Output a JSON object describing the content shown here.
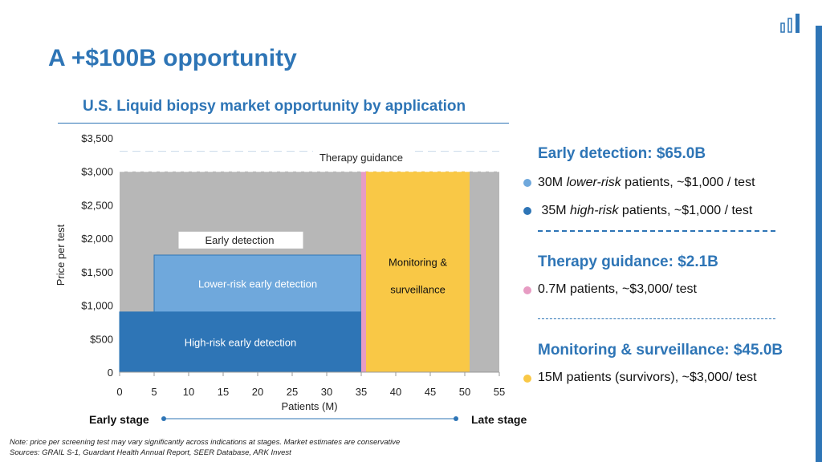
{
  "slide": {
    "title": "A +$100B opportunity"
  },
  "chart_data": {
    "type": "area",
    "title": "U.S. Liquid biopsy market opportunity by application",
    "xlabel": "Patients (M)",
    "ylabel": "Price per test",
    "xlim": [
      0,
      55
    ],
    "ylim": [
      0,
      3500
    ],
    "x_ticks": [
      0,
      5,
      10,
      15,
      20,
      25,
      30,
      35,
      40,
      45,
      50,
      55
    ],
    "y_ticks": [
      {
        "value": 0,
        "label": "0"
      },
      {
        "value": 500,
        "label": "$500"
      },
      {
        "value": 1000,
        "label": "$1,000"
      },
      {
        "value": 1500,
        "label": "$1,500"
      },
      {
        "value": 2000,
        "label": "$2,000"
      },
      {
        "value": 2500,
        "label": "$2,500"
      },
      {
        "value": 3000,
        "label": "$3,000"
      },
      {
        "value": 3500,
        "label": "$3,500"
      }
    ],
    "series": [
      {
        "name": "High-risk early detection",
        "x0": 0,
        "x1": 35,
        "y0": 0,
        "y1": 900,
        "color": "#2e75b6",
        "text_color": "#ffffff"
      },
      {
        "name": "Lower-risk early detection",
        "x0": 5,
        "x1": 35,
        "y0": 900,
        "y1": 1750,
        "color": "#6fa8dc",
        "text_color": "#ffffff"
      },
      {
        "name": "Therapy guidance",
        "x0": 35,
        "x1": 35.7,
        "y0": 0,
        "y1": 3000,
        "color": "#e79cc3"
      },
      {
        "name": "Monitoring & surveillance",
        "label_lines": [
          "Monitoring &",
          "surveillance"
        ],
        "x0": 35.7,
        "x1": 50.7,
        "y0": 0,
        "y1": 3000,
        "color": "#f9c846",
        "text_color": "#111111"
      }
    ],
    "annotations": [
      {
        "text": "Early detection",
        "x": 17.5,
        "y": 1980
      },
      {
        "text": "Therapy guidance",
        "x": 35,
        "y": 3200
      }
    ],
    "background_color": "#b7b7b7",
    "stage_axis": {
      "left": "Early stage",
      "right": "Late stage"
    }
  },
  "legend": {
    "early": {
      "heading": "Early detection: $65.0B",
      "items": [
        {
          "color": "#6fa8dc",
          "count": "30M ",
          "em": "lower-risk",
          "rest": " patients, ~$1,000 / test"
        },
        {
          "color": "#2e75b6",
          "count": " 35M ",
          "em": "high-risk",
          "rest": " patients, ~$1,000 / test"
        }
      ]
    },
    "therapy": {
      "heading": "Therapy guidance: $2.1B",
      "item": {
        "color": "#e79cc3",
        "text": "0.7M patients, ~$3,000/ test"
      }
    },
    "monitoring": {
      "heading": "Monitoring & surveillance: $45.0B",
      "item": {
        "color": "#f9c846",
        "text": "15M patients (survivors), ~$3,000/ test"
      }
    }
  },
  "footnote": {
    "note": "Note: price per screening test may vary significantly across indications at stages. Market estimates are conservative",
    "sources": "Sources: GRAIL S-1, Guardant Health Annual Report, SEER Database, ARK Invest"
  }
}
